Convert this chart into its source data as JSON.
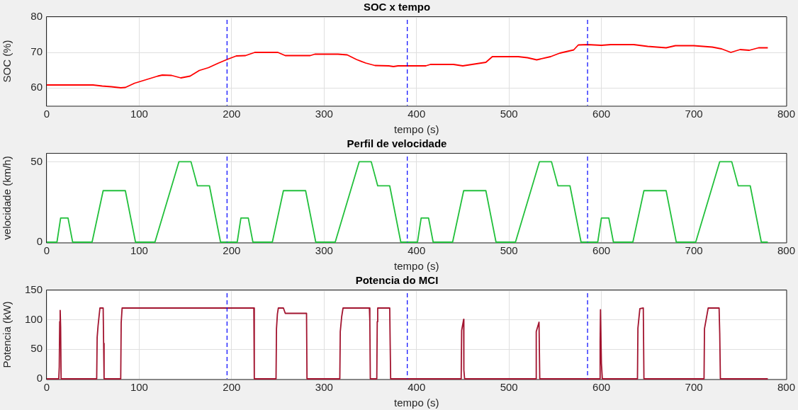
{
  "chart_data": [
    {
      "type": "line",
      "title": "SOC x tempo",
      "xlabel": "tempo (s)",
      "ylabel": "SOC (%)",
      "xlim": [
        0,
        800
      ],
      "xticks": [
        0,
        100,
        200,
        300,
        400,
        500,
        600,
        700,
        800
      ],
      "ylim": [
        55,
        80
      ],
      "yticks": [
        60,
        70,
        80
      ],
      "grid": true,
      "marker": "none",
      "line_style": "solid",
      "ref_lines": [
        {
          "axis": "x",
          "value": 195,
          "color": "#0000ff",
          "line_style": "dashed"
        },
        {
          "axis": "x",
          "value": 390,
          "color": "#0000ff",
          "line_style": "dashed"
        },
        {
          "axis": "x",
          "value": 585,
          "color": "#0000ff",
          "line_style": "dashed"
        }
      ],
      "series": [
        {
          "color": "#ff0000",
          "x": [
            0,
            50,
            60,
            70,
            80,
            85,
            95,
            110,
            120,
            125,
            135,
            145,
            155,
            165,
            175,
            185,
            195,
            205,
            215,
            225,
            250,
            258,
            285,
            290,
            315,
            325,
            335,
            345,
            355,
            370,
            375,
            380,
            400,
            410,
            415,
            440,
            450,
            460,
            475,
            482,
            510,
            520,
            530,
            545,
            555,
            570,
            575,
            585,
            600,
            610,
            635,
            650,
            670,
            680,
            700,
            720,
            730,
            740,
            750,
            760,
            770,
            780
          ],
          "values": [
            60.8,
            60.8,
            60.5,
            60.3,
            60,
            60.1,
            61.3,
            62.5,
            63.3,
            63.6,
            63.5,
            62.8,
            63.3,
            64.9,
            65.7,
            66.9,
            68,
            69,
            69.1,
            70,
            70,
            69.1,
            69.1,
            69.5,
            69.5,
            69.3,
            68,
            67,
            66.3,
            66.2,
            66,
            66.2,
            66.2,
            66.2,
            66.6,
            66.6,
            66.2,
            66.6,
            67.2,
            68.8,
            68.8,
            68.5,
            67.9,
            68.8,
            69.8,
            70.7,
            72.1,
            72.2,
            72,
            72.2,
            72.2,
            71.7,
            71.3,
            71.9,
            71.9,
            71.5,
            71,
            70,
            70.8,
            70.6,
            71.3,
            71.3
          ]
        }
      ]
    },
    {
      "type": "line",
      "title": "Perfil de velocidade",
      "xlabel": "tempo (s)",
      "ylabel": "velocidade (km/h)",
      "xlim": [
        0,
        800
      ],
      "xticks": [
        0,
        100,
        200,
        300,
        400,
        500,
        600,
        700,
        800
      ],
      "ylim": [
        0,
        55
      ],
      "yticks": [
        0,
        50
      ],
      "grid": true,
      "marker": "none",
      "line_style": "solid",
      "ref_lines": [
        {
          "axis": "x",
          "value": 195,
          "color": "#0000ff",
          "line_style": "dashed"
        },
        {
          "axis": "x",
          "value": 390,
          "color": "#0000ff",
          "line_style": "dashed"
        },
        {
          "axis": "x",
          "value": 585,
          "color": "#0000ff",
          "line_style": "dashed"
        }
      ],
      "series": [
        {
          "color": "#22c03c",
          "x": [
            0,
            11,
            15,
            23,
            28,
            49,
            61,
            85,
            96,
            117,
            143,
            156,
            163,
            176,
            188,
            195,
            206,
            210,
            218,
            223,
            244,
            256,
            280,
            291,
            312,
            338,
            351,
            358,
            371,
            383,
            390,
            401,
            405,
            413,
            418,
            439,
            451,
            475,
            486,
            507,
            533,
            546,
            553,
            566,
            578,
            585,
            596,
            600,
            608,
            613,
            634,
            646,
            670,
            681,
            702,
            728,
            741,
            748,
            761,
            773,
            780
          ],
          "values": [
            0,
            0,
            15,
            15,
            0,
            0,
            32,
            32,
            0,
            0,
            50,
            50,
            35,
            35,
            0,
            0,
            0,
            15,
            15,
            0,
            0,
            32,
            32,
            0,
            0,
            50,
            50,
            35,
            35,
            0,
            0,
            0,
            15,
            15,
            0,
            0,
            32,
            32,
            0,
            0,
            50,
            50,
            35,
            35,
            0,
            0,
            0,
            15,
            15,
            0,
            0,
            32,
            32,
            0,
            0,
            50,
            50,
            35,
            35,
            0,
            0
          ]
        }
      ]
    },
    {
      "type": "line",
      "title": "Potencia do MCI",
      "xlabel": "tempo (s)",
      "ylabel": "Potencia (kW)",
      "xlim": [
        0,
        800
      ],
      "xticks": [
        0,
        100,
        200,
        300,
        400,
        500,
        600,
        700,
        800
      ],
      "ylim": [
        0,
        150
      ],
      "yticks": [
        0,
        50,
        100,
        150
      ],
      "grid": true,
      "marker": "none",
      "line_style": "solid",
      "ref_lines": [
        {
          "axis": "x",
          "value": 195,
          "color": "#0000ff",
          "line_style": "dashed"
        },
        {
          "axis": "x",
          "value": 390,
          "color": "#0000ff",
          "line_style": "dashed"
        },
        {
          "axis": "x",
          "value": 585,
          "color": "#0000ff",
          "line_style": "dashed"
        }
      ],
      "series": [
        {
          "color": "#a2142f",
          "x": [
            0,
            13,
            13.5,
            14,
            14.5,
            15,
            15.5,
            54,
            54.5,
            55.5,
            56.5,
            57.5,
            61,
            61.5,
            62,
            80,
            80.5,
            81.5,
            224,
            224.5,
            248,
            248.5,
            249.5,
            250.5,
            256,
            258,
            281,
            281.5,
            317,
            317.5,
            319,
            320.5,
            349,
            349.5,
            350,
            357,
            357.5,
            358,
            371,
            371.5,
            372,
            448.3,
            448.8,
            451,
            451.2,
            452,
            529,
            529.5,
            532.5,
            533.3,
            598.1,
            598.6,
            599,
            600,
            601,
            639,
            639.5,
            641.6,
            645.3,
            646,
            711,
            711.5,
            715.5,
            727.3,
            728,
            728.7,
            780
          ],
          "values": [
            0,
            0,
            20,
            97,
            116,
            88,
            0,
            0,
            70,
            90,
            105,
            120,
            120,
            60,
            0,
            0,
            95,
            120,
            120,
            0,
            0,
            85,
            110,
            120,
            120,
            111,
            111,
            0,
            0,
            80,
            105,
            120,
            120,
            97,
            0,
            0,
            97,
            120,
            120,
            57,
            0,
            0,
            82,
            101,
            15,
            0,
            0,
            80,
            96,
            0,
            0,
            63,
            117,
            26,
            0,
            0,
            86,
            119,
            120,
            0,
            0,
            85,
            120,
            120,
            77,
            0,
            0
          ]
        }
      ]
    }
  ]
}
